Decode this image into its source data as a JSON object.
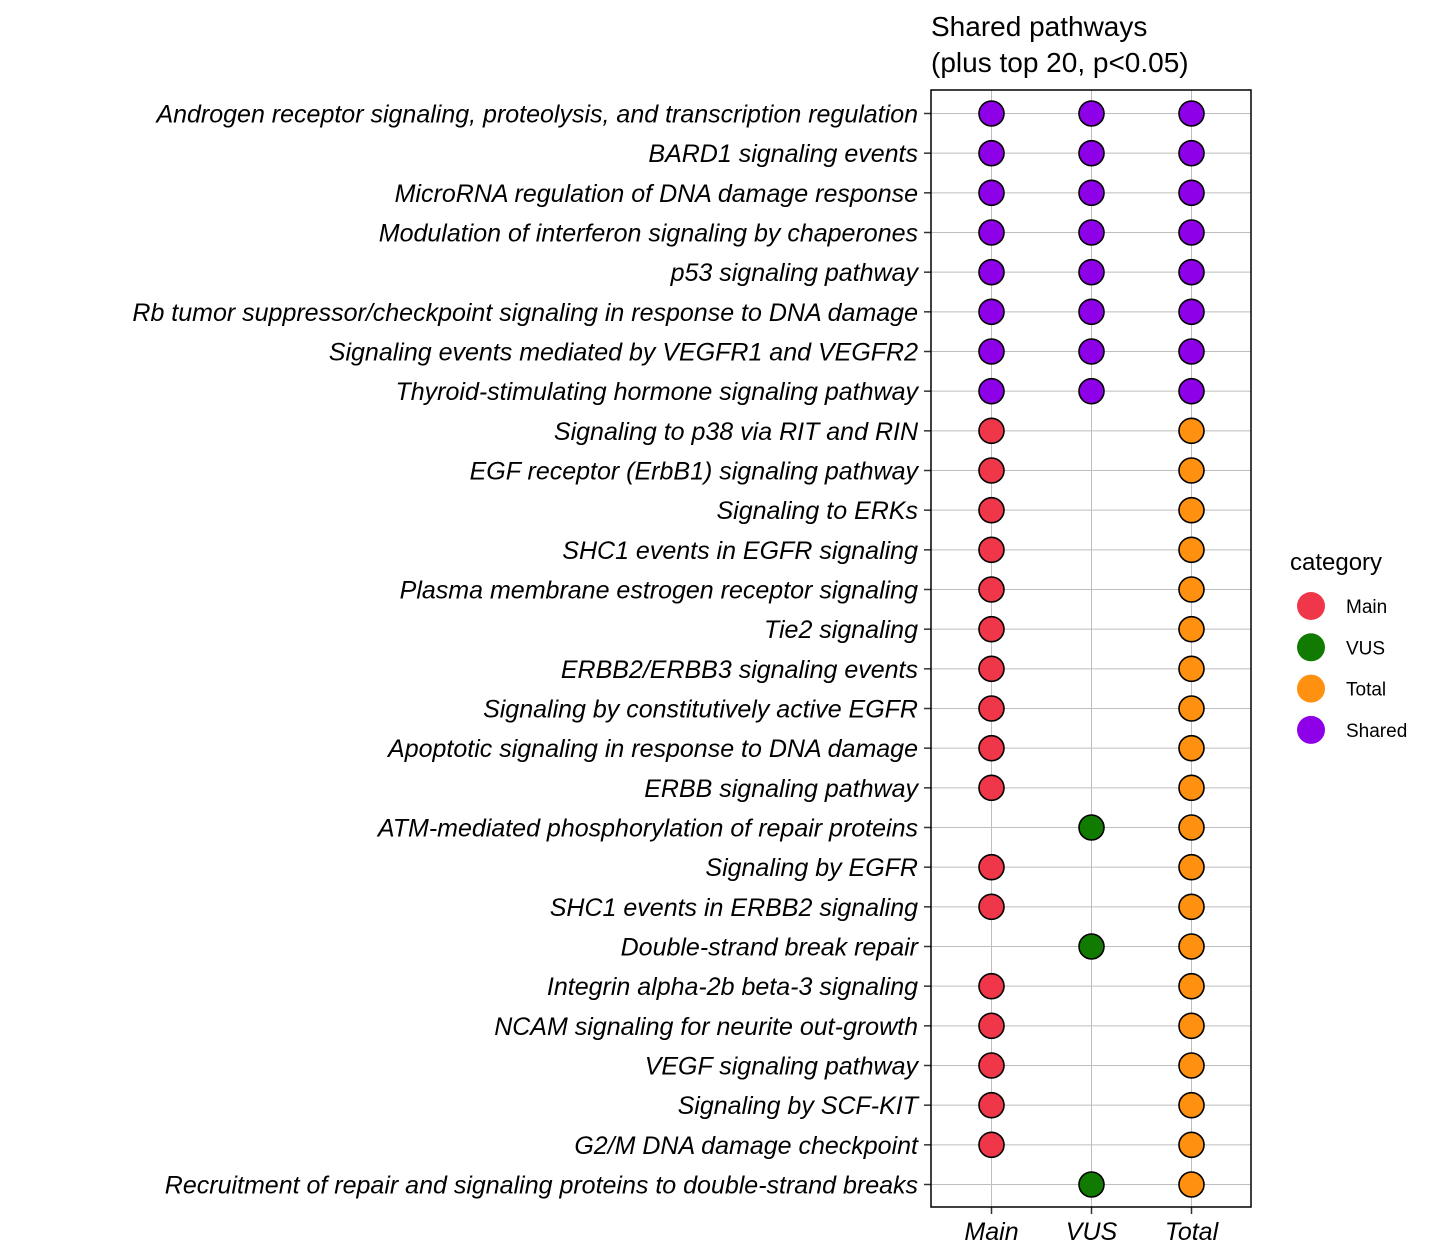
{
  "chart_data": {
    "type": "scatter",
    "title": [
      "Shared pathways",
      "(plus top 20, p<0.05)"
    ],
    "xlabel": "",
    "ylabel": "",
    "grid": true,
    "legend_position": "right",
    "legend": {
      "title": "category",
      "entries": [
        {
          "label": "Main",
          "color": "#F0374A"
        },
        {
          "label": "VUS",
          "color": "#117A00"
        },
        {
          "label": "Total",
          "color": "#FF9010"
        },
        {
          "label": "Shared",
          "color": "#8E00E8"
        }
      ]
    },
    "x_categories": [
      "Main",
      "VUS",
      "Total"
    ],
    "rows": [
      {
        "pathway": "Androgen receptor signaling, proteolysis, and transcription regulation",
        "points": [
          "Shared",
          "Shared",
          "Shared"
        ]
      },
      {
        "pathway": "BARD1 signaling events",
        "points": [
          "Shared",
          "Shared",
          "Shared"
        ]
      },
      {
        "pathway": "MicroRNA regulation of DNA damage response",
        "points": [
          "Shared",
          "Shared",
          "Shared"
        ]
      },
      {
        "pathway": "Modulation of interferon signaling by chaperones",
        "points": [
          "Shared",
          "Shared",
          "Shared"
        ]
      },
      {
        "pathway": "p53 signaling pathway",
        "points": [
          "Shared",
          "Shared",
          "Shared"
        ]
      },
      {
        "pathway": "Rb tumor suppressor/checkpoint signaling in response to DNA damage",
        "points": [
          "Shared",
          "Shared",
          "Shared"
        ]
      },
      {
        "pathway": "Signaling events mediated by VEGFR1 and VEGFR2",
        "points": [
          "Shared",
          "Shared",
          "Shared"
        ]
      },
      {
        "pathway": "Thyroid-stimulating hormone signaling pathway",
        "points": [
          "Shared",
          "Shared",
          "Shared"
        ]
      },
      {
        "pathway": "Signaling to p38 via RIT and RIN",
        "points": [
          "Main",
          null,
          "Total"
        ]
      },
      {
        "pathway": "EGF receptor (ErbB1) signaling pathway",
        "points": [
          "Main",
          null,
          "Total"
        ]
      },
      {
        "pathway": "Signaling to ERKs",
        "points": [
          "Main",
          null,
          "Total"
        ]
      },
      {
        "pathway": "SHC1 events in EGFR signaling",
        "points": [
          "Main",
          null,
          "Total"
        ]
      },
      {
        "pathway": "Plasma membrane estrogen receptor signaling",
        "points": [
          "Main",
          null,
          "Total"
        ]
      },
      {
        "pathway": "Tie2 signaling",
        "points": [
          "Main",
          null,
          "Total"
        ]
      },
      {
        "pathway": "ERBB2/ERBB3 signaling events",
        "points": [
          "Main",
          null,
          "Total"
        ]
      },
      {
        "pathway": "Signaling by constitutively active EGFR",
        "points": [
          "Main",
          null,
          "Total"
        ]
      },
      {
        "pathway": "Apoptotic signaling in response to DNA damage",
        "points": [
          "Main",
          null,
          "Total"
        ]
      },
      {
        "pathway": "ERBB signaling pathway",
        "points": [
          "Main",
          null,
          "Total"
        ]
      },
      {
        "pathway": "ATM-mediated phosphorylation of repair proteins",
        "points": [
          null,
          "VUS",
          "Total"
        ]
      },
      {
        "pathway": "Signaling by EGFR",
        "points": [
          "Main",
          null,
          "Total"
        ]
      },
      {
        "pathway": "SHC1 events in ERBB2 signaling",
        "points": [
          "Main",
          null,
          "Total"
        ]
      },
      {
        "pathway": "Double-strand break repair",
        "points": [
          null,
          "VUS",
          "Total"
        ]
      },
      {
        "pathway": "Integrin alpha-2b beta-3 signaling",
        "points": [
          "Main",
          null,
          "Total"
        ]
      },
      {
        "pathway": "NCAM signaling for neurite out-growth",
        "points": [
          "Main",
          null,
          "Total"
        ]
      },
      {
        "pathway": "VEGF signaling pathway",
        "points": [
          "Main",
          null,
          "Total"
        ]
      },
      {
        "pathway": "Signaling by SCF-KIT",
        "points": [
          "Main",
          null,
          "Total"
        ]
      },
      {
        "pathway": "G2/M DNA damage checkpoint",
        "points": [
          "Main",
          null,
          "Total"
        ]
      },
      {
        "pathway": "Recruitment of repair and signaling proteins to double-strand breaks",
        "points": [
          null,
          "VUS",
          "Total"
        ]
      }
    ]
  }
}
